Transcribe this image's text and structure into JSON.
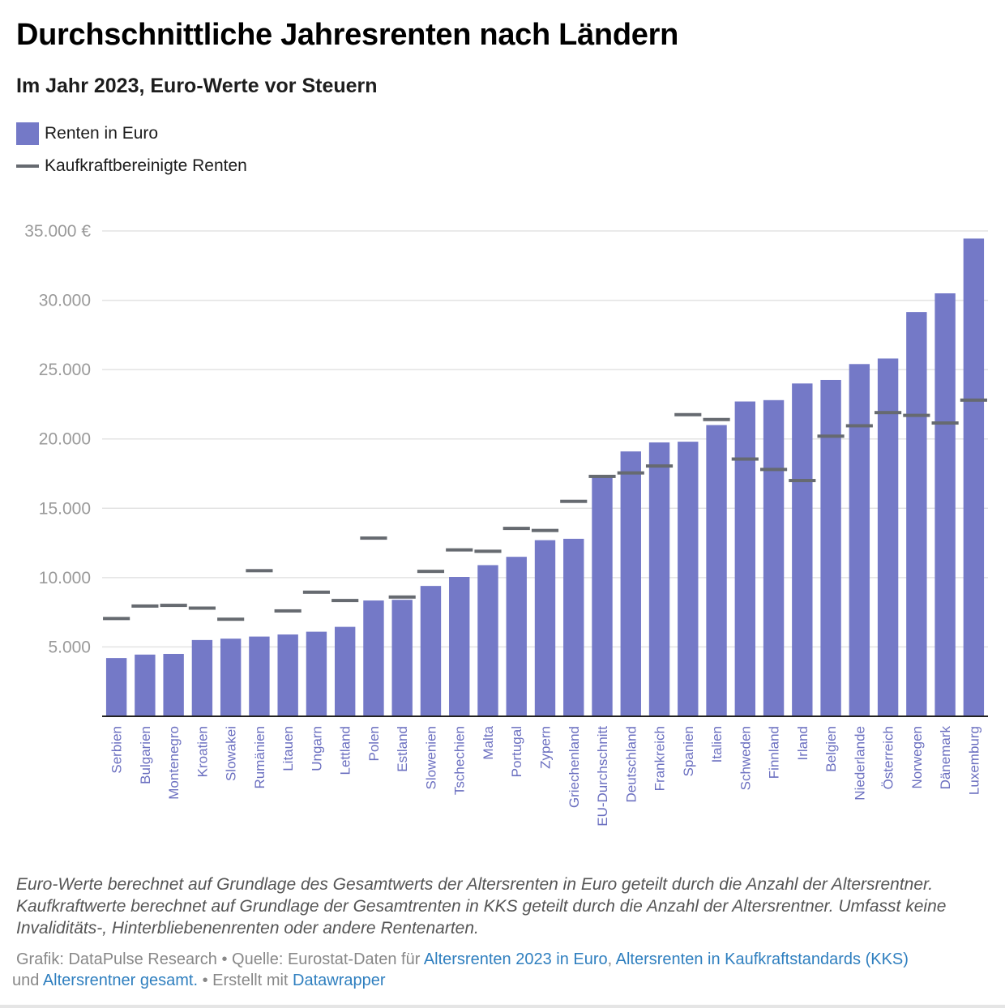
{
  "header": {
    "title": "Durchschnittliche Jahresrenten nach Ländern",
    "subtitle": "Im Jahr 2023, Euro-Werte vor Steuern"
  },
  "legend": {
    "items": [
      {
        "label": "Renten in Euro",
        "symbol": "square",
        "color": "#7479c7"
      },
      {
        "label": "Kaufkraftbereinigte Renten",
        "symbol": "line",
        "color": "#666a70"
      }
    ]
  },
  "chart_data": {
    "type": "bar",
    "title": "Durchschnittliche Jahresrenten nach Ländern",
    "subtitle": "Im Jahr 2023, Euro-Werte vor Steuern",
    "xlabel": "",
    "ylabel": "",
    "ylim": [
      0,
      35000
    ],
    "y_ticks": [
      5000,
      10000,
      15000,
      20000,
      25000,
      30000,
      35000
    ],
    "y_tick_labels": [
      "5.000",
      "10.000",
      "15.000",
      "20.000",
      "25.000",
      "30.000",
      "35.000 €"
    ],
    "grid": true,
    "legend_position": "top-left",
    "categories": [
      "Serbien",
      "Bulgarien",
      "Montenegro",
      "Kroatien",
      "Slowakei",
      "Rumänien",
      "Litauen",
      "Ungarn",
      "Lettland",
      "Polen",
      "Estland",
      "Slowenien",
      "Tschechien",
      "Malta",
      "Portugal",
      "Zypern",
      "Griechenland",
      "EU-Durchschnitt",
      "Deutschland",
      "Frankreich",
      "Spanien",
      "Italien",
      "Schweden",
      "Finnland",
      "Irland",
      "Belgien",
      "Niederlande",
      "Österreich",
      "Norwegen",
      "Dänemark",
      "Luxemburg"
    ],
    "series": [
      {
        "name": "Renten in Euro",
        "mark": "bar",
        "color": "#7479c7",
        "values": [
          4200,
          4450,
          4500,
          5500,
          5600,
          5750,
          5900,
          6100,
          6450,
          8350,
          8400,
          9400,
          10050,
          10900,
          11500,
          12700,
          12800,
          17300,
          19100,
          19750,
          19800,
          21000,
          22700,
          22800,
          24000,
          24250,
          25400,
          25800,
          29150,
          30500,
          34450
        ]
      },
      {
        "name": "Kaufkraftbereinigte Renten",
        "mark": "tick",
        "color": "#666a70",
        "values": [
          7050,
          7950,
          8000,
          7800,
          7000,
          10500,
          7600,
          8950,
          8350,
          12850,
          8600,
          10450,
          12000,
          11900,
          13550,
          13400,
          15500,
          17300,
          17550,
          18050,
          21750,
          21400,
          18550,
          17800,
          17000,
          20200,
          20950,
          21900,
          21700,
          21150,
          22800
        ]
      }
    ]
  },
  "notes": "Euro-Werte berechnet auf Grundlage des Gesamtwerts der Altersrenten in Euro geteilt durch die Anzahl der Altersrentner. Kaufkraftwerte berechnet auf Grundlage der Gesamtrenten in KKS geteilt durch die Anzahl der Altersrentner. Umfasst keine Invaliditäts-, Hinterbliebenenrenten oder andere Rentenarten.",
  "footer": {
    "credit": "Grafik: DataPulse Research",
    "sep1": " • ",
    "source_prefix": "Quelle: Eurostat-Daten für ",
    "link1": "Altersrenten 2023 in Euro",
    "comma": ", ",
    "link2": "Altersrenten in Kaufkraftstandards (KKS)",
    "and": " und ",
    "link3": "Altersrentner gesamt.",
    "sep2": "  • Erstellt mit ",
    "link4": "Datawrapper"
  }
}
